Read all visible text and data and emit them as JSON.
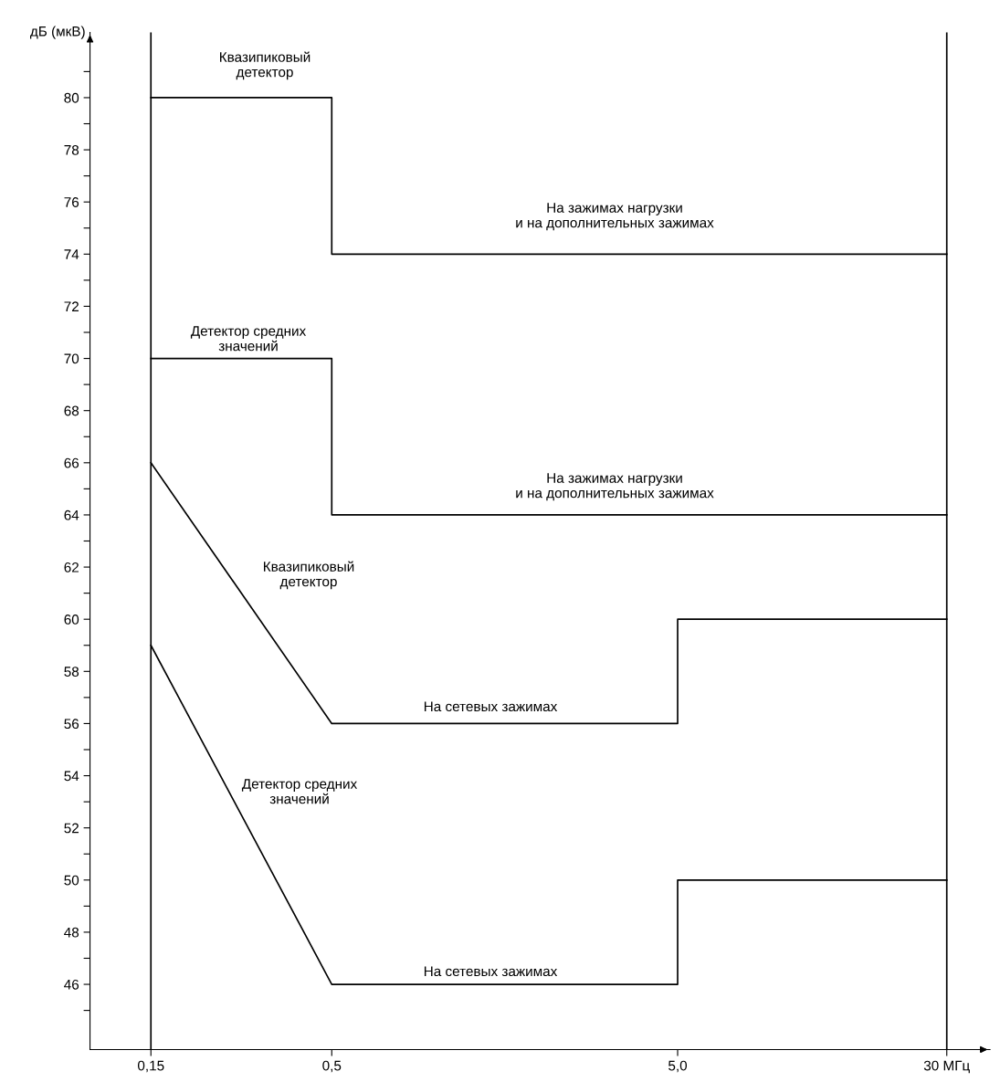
{
  "chart_data": {
    "type": "line",
    "ylabel": "дБ (мкВ)",
    "log": "x",
    "grid": false,
    "marker": "none",
    "line_style": "solid",
    "xlim": [
      0.1,
      40
    ],
    "xticks": [
      {
        "value": 0.15,
        "label": "0,15"
      },
      {
        "value": 0.5,
        "label": "0,5"
      },
      {
        "value": 5,
        "label": "5,0"
      },
      {
        "value": 30,
        "label": "30 МГц"
      }
    ],
    "ylim": [
      43.5,
      82.5
    ],
    "yticks": [
      {
        "value": 45,
        "label": null
      },
      46,
      {
        "value": 47,
        "label": null
      },
      48,
      {
        "value": 49,
        "label": null
      },
      50,
      {
        "value": 51,
        "label": null
      },
      52,
      {
        "value": 53,
        "label": null
      },
      54,
      {
        "value": 55,
        "label": null
      },
      56,
      {
        "value": 57,
        "label": null
      },
      58,
      {
        "value": 59,
        "label": null
      },
      60,
      {
        "value": 61,
        "label": null
      },
      62,
      {
        "value": 63,
        "label": null
      },
      64,
      {
        "value": 65,
        "label": null
      },
      66,
      {
        "value": 67,
        "label": null
      },
      68,
      {
        "value": 69,
        "label": null
      },
      70,
      {
        "value": 71,
        "label": null
      },
      72,
      {
        "value": 73,
        "label": null
      },
      74,
      {
        "value": 75,
        "label": null
      },
      76,
      {
        "value": 77,
        "label": null
      },
      78,
      {
        "value": 79,
        "label": null
      },
      80,
      {
        "value": 81,
        "label": null
      }
    ],
    "series": [
      {
        "color": "#000000",
        "x": [
          0.15,
          0.5,
          0.5,
          30
        ],
        "values": [
          80,
          80,
          74,
          74
        ]
      },
      {
        "color": "#000000",
        "x": [
          0.15,
          0.5,
          0.5,
          30
        ],
        "values": [
          70,
          70,
          64,
          64
        ]
      },
      {
        "color": "#000000",
        "x": [
          0.15,
          0.5,
          5,
          5,
          30
        ],
        "values": [
          66,
          56,
          56,
          60,
          60
        ]
      },
      {
        "color": "#000000",
        "x": [
          0.15,
          0.5,
          5,
          5,
          30
        ],
        "values": [
          59,
          46,
          46,
          50,
          50
        ]
      }
    ],
    "ref_lines": [
      {
        "axis": "x",
        "value": 0.15,
        "color": "#000000"
      },
      {
        "axis": "x",
        "value": 30,
        "color": "#000000"
      }
    ],
    "annotations": [
      "Квазипиковый\nдетектор",
      "На зажимах нагрузки\nи на дополнительных зажимах",
      "Детектор средних\nзначений",
      "На зажимах нагрузки\nи на дополнительных зажимах",
      "Квазипиковый\nдетектор",
      "На сетевых зажимах",
      "Детектор средних\nзначений",
      "На сетевых зажимах"
    ]
  }
}
